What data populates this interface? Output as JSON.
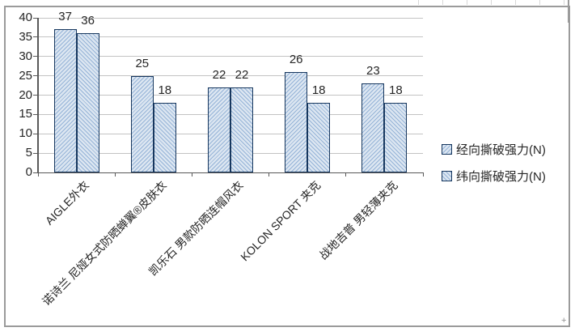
{
  "chart_data": {
    "type": "bar",
    "categories": [
      "AIGLE外衣",
      "诺诗兰 尼娅女式防晒蝉翼®皮肤衣",
      "凯乐石 男款防晒连帽风衣",
      "KOLON SPORT 夹克",
      "战地吉普 男轻薄夹克"
    ],
    "series": [
      {
        "name": "经向撕破强力(N)",
        "pattern": "diagonal-up",
        "values": [
          37,
          25,
          22,
          26,
          23
        ]
      },
      {
        "name": "纬向撕破强力(N)",
        "pattern": "diagonal-down",
        "values": [
          36,
          18,
          22,
          18,
          18
        ]
      }
    ],
    "ylim": [
      0,
      40
    ],
    "ytick_step": 5,
    "yticks": [
      0,
      5,
      10,
      15,
      20,
      25,
      30,
      35,
      40
    ],
    "grid": "horizontal",
    "legend_position": "right",
    "bar_value_labels": true,
    "x_label_rotation_deg": 45
  },
  "colors": {
    "bar_fill": "#dce6f1",
    "bar_hatch_line": "#95b3d7",
    "bar_border": "#17375e",
    "gridline": "#c3c3c3",
    "axis_line": "#595959",
    "frame_border": "#9b9b9b",
    "text": "#262626",
    "background": "#ffffff"
  },
  "icons": {
    "legend_swatch_warp": "hatched-square-diagonal-up",
    "legend_swatch_weft": "hatched-square-diagonal-down",
    "corner_mark": "+"
  }
}
